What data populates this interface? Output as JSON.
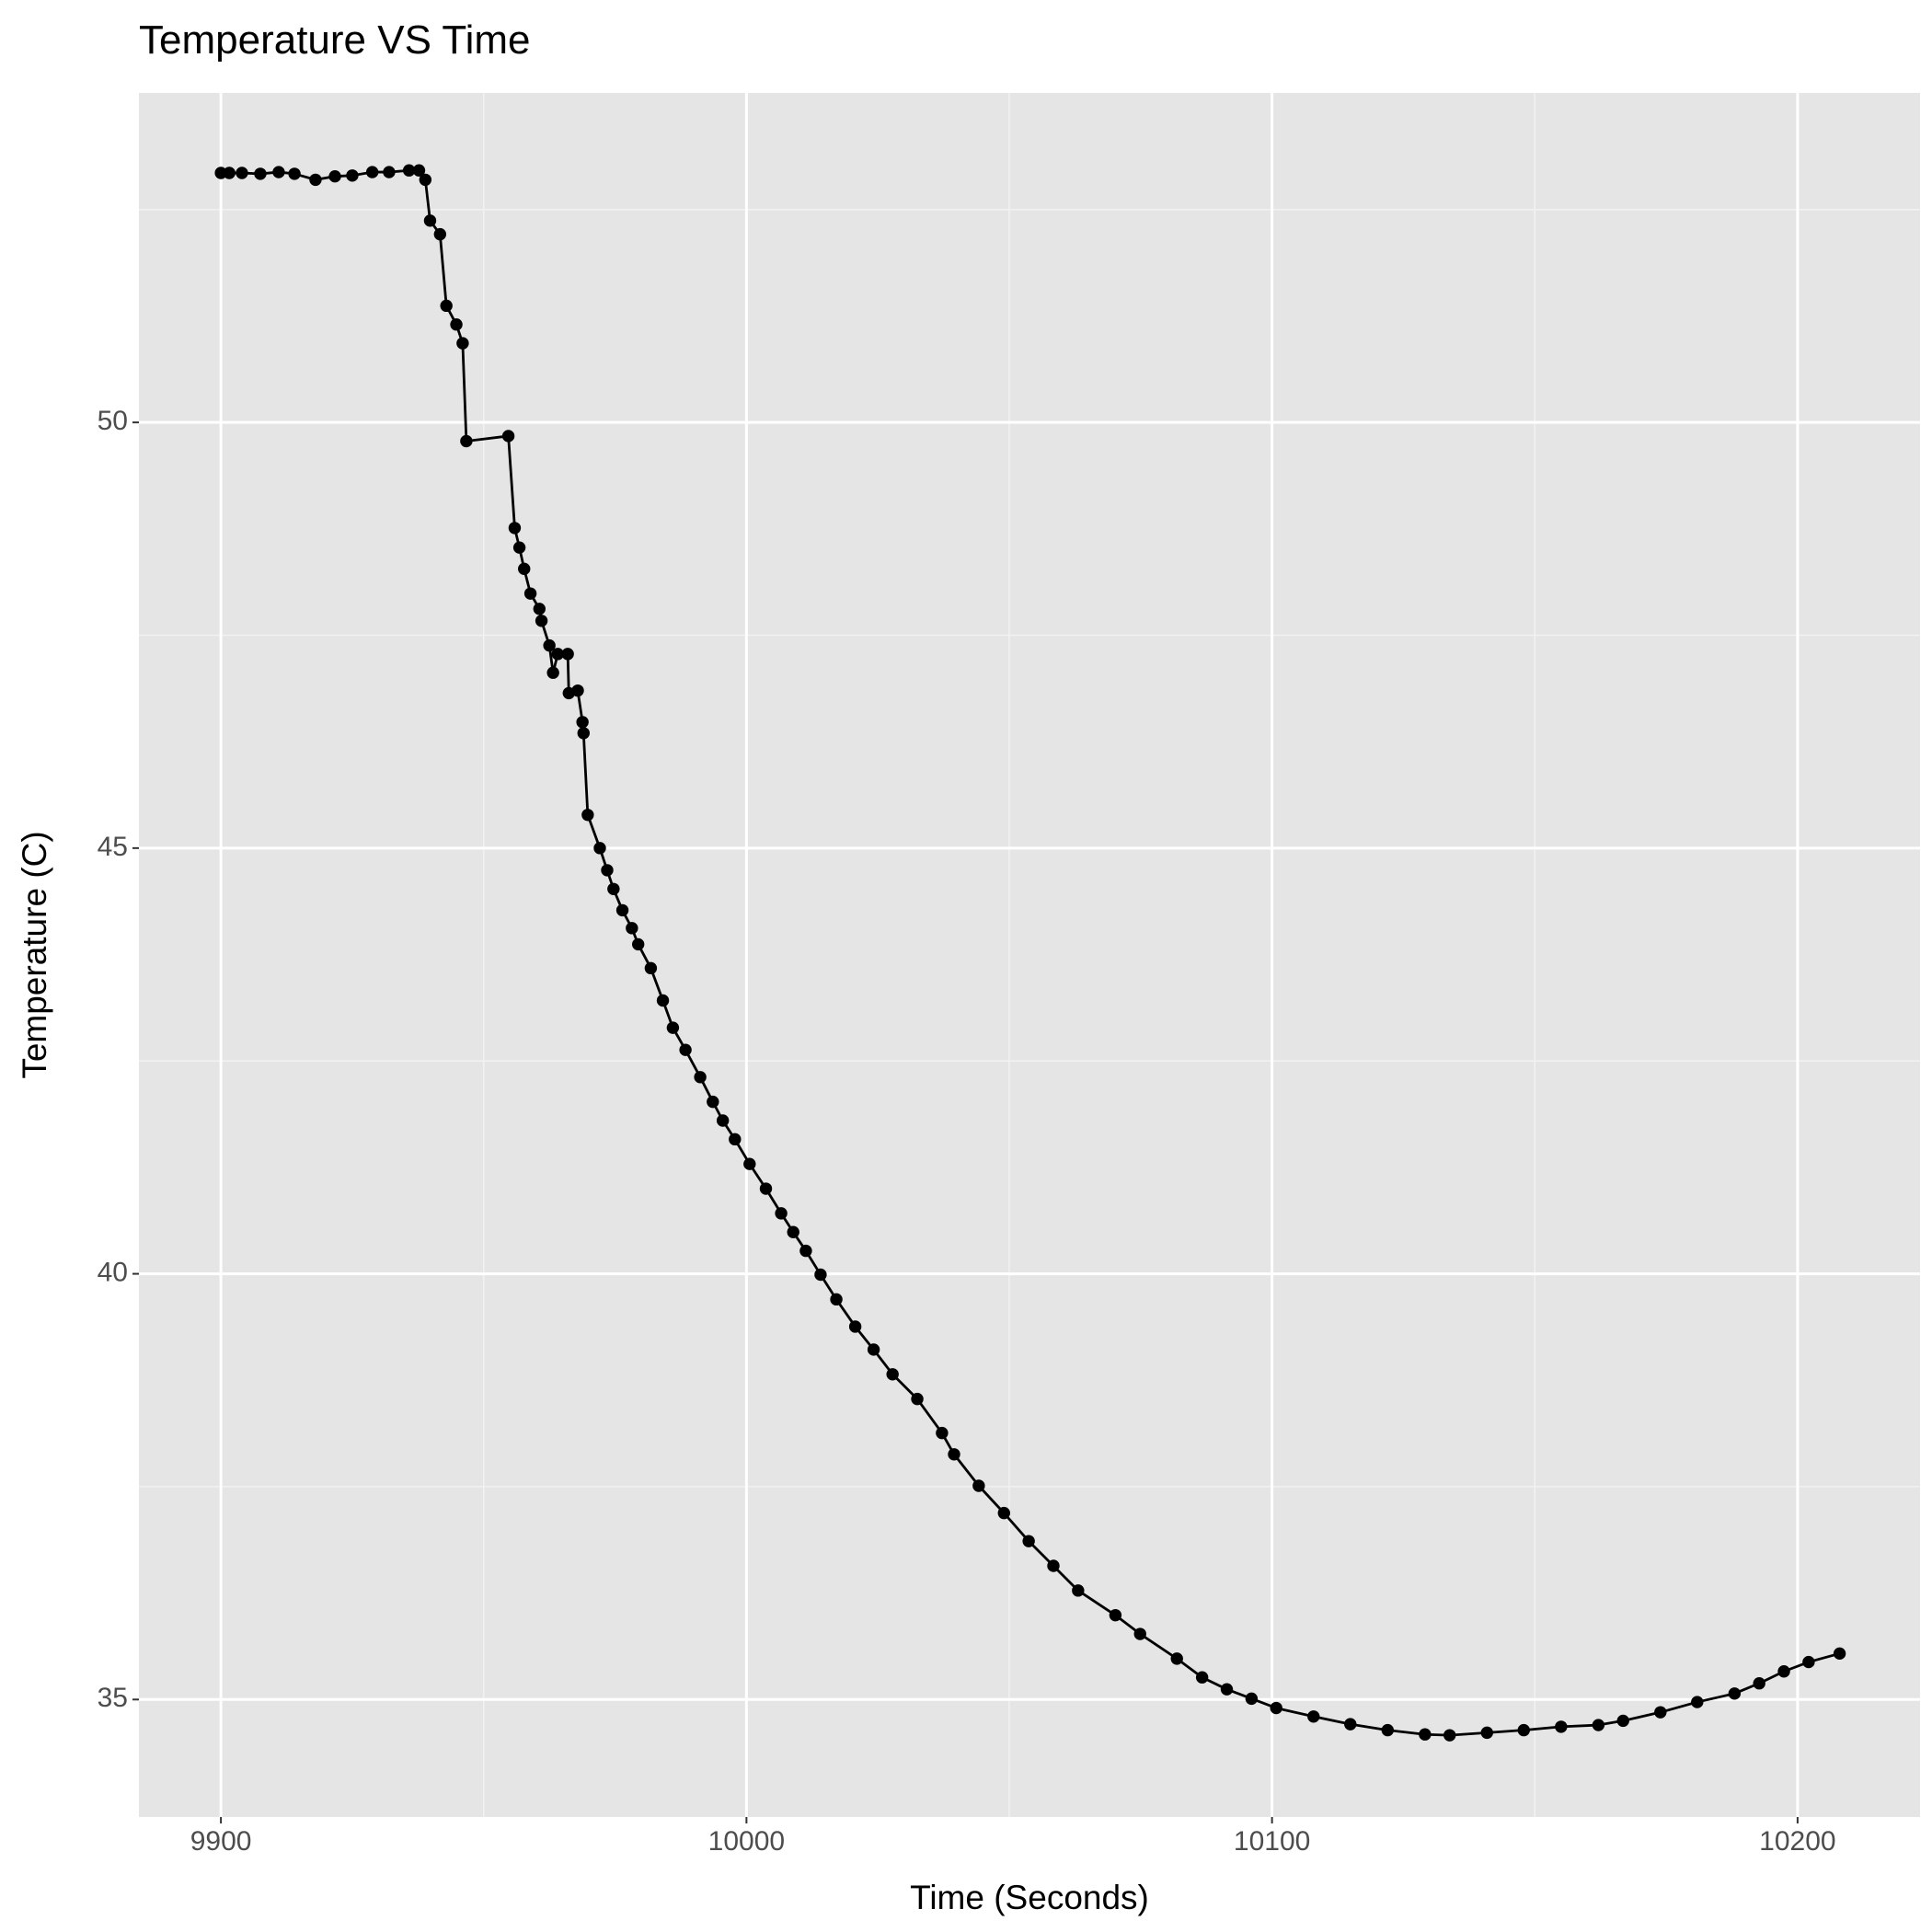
{
  "chart_data": {
    "type": "line",
    "title": "Temperature VS Time",
    "x_label": "Time (Seconds)",
    "y_label": "Temperature (C)",
    "xlim": [
      9884.4,
      10223.3
    ],
    "ylim": [
      33.62,
      53.87
    ],
    "xticks": [
      9900,
      10000,
      10100,
      10200
    ],
    "yticks": [
      35,
      40,
      45,
      50
    ],
    "grid": true,
    "markers": true,
    "series": [
      {
        "name": "Temperature",
        "color": "#000000",
        "x": [
          9900,
          9901.6,
          9904,
          9907.5,
          9911,
          9914,
          9918,
          9921.7,
          9925,
          9928.8,
          9932,
          9935.8,
          9937.7,
          9938.9,
          9939.8,
          9941.7,
          9942.9,
          9944.8,
          9946,
          9946.7,
          9954.7,
          9955.9,
          9956.8,
          9957.7,
          9958.9,
          9960.6,
          9961,
          9962.5,
          9963.2,
          9964.1,
          9966,
          9966.2,
          9967.9,
          9968.8,
          9969,
          9969.8,
          9972.1,
          9973.5,
          9974.7,
          9976.4,
          9978.2,
          9979.4,
          9981.8,
          9984.1,
          9986.0,
          9988.4,
          9991.2,
          9993.6,
          9995.5,
          9997.8,
          10000.6,
          10003.7,
          10006.6,
          10008.9,
          10011.3,
          10014.1,
          10017.1,
          10020.7,
          10024.2,
          10027.8,
          10032.5,
          10037.2,
          10039.5,
          10044.2,
          10049.0,
          10053.7,
          10058.4,
          10063.1,
          10070.2,
          10074.9,
          10081.9,
          10086.7,
          10091.4,
          10096.1,
          10100.8,
          10107.9,
          10114.9,
          10122.0,
          10129.1,
          10133.8,
          10140.9,
          10147.9,
          10155.0,
          10162.1,
          10166.8,
          10173.9,
          10180.9,
          10188.0,
          10192.7,
          10197.4,
          10202.1,
          10208.0
        ],
        "values": [
          52.93,
          52.93,
          52.93,
          52.92,
          52.94,
          52.92,
          52.85,
          52.89,
          52.9,
          52.94,
          52.94,
          52.96,
          52.96,
          52.85,
          52.37,
          52.21,
          51.37,
          51.15,
          50.93,
          49.78,
          49.84,
          48.76,
          48.53,
          48.28,
          47.99,
          47.81,
          47.67,
          47.38,
          47.06,
          47.28,
          47.28,
          46.82,
          46.85,
          46.48,
          46.35,
          45.39,
          45.0,
          44.74,
          44.52,
          44.27,
          44.06,
          43.87,
          43.59,
          43.21,
          42.89,
          42.63,
          42.31,
          42.02,
          41.8,
          41.58,
          41.29,
          41.0,
          40.71,
          40.49,
          40.27,
          39.99,
          39.7,
          39.38,
          39.11,
          38.82,
          38.53,
          38.13,
          37.88,
          37.51,
          37.19,
          36.86,
          36.57,
          36.28,
          35.99,
          35.77,
          35.48,
          35.26,
          35.12,
          35.01,
          34.9,
          34.8,
          34.71,
          34.64,
          34.59,
          34.58,
          34.61,
          34.64,
          34.68,
          34.7,
          34.75,
          34.85,
          34.97,
          35.07,
          35.19,
          35.33,
          35.44,
          35.54
        ]
      }
    ]
  }
}
